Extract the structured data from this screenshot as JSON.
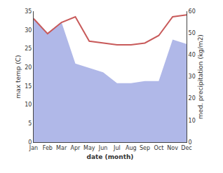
{
  "chart_data": {
    "type": "line",
    "categories": [
      "Jan",
      "Feb",
      "Mar",
      "Apr",
      "May",
      "Jun",
      "Jul",
      "Aug",
      "Sep",
      "Oct",
      "Nov",
      "Dec"
    ],
    "xlabel": "date (month)",
    "ylabel": "max temp (C)",
    "y2label": "med. precipitation (kg/m2)",
    "series": [
      {
        "type": "area",
        "axis": "y2",
        "color": "#b0b8e8",
        "values": [
          57.0,
          50.0,
          55.0,
          36.0,
          34.0,
          32.0,
          27.0,
          27.0,
          28.0,
          28.0,
          47.0,
          45.0
        ]
      },
      {
        "type": "line",
        "color": "#c85a5a",
        "values": [
          33.0,
          29.0,
          32.0,
          33.5,
          27.0,
          26.5,
          26.0,
          26.0,
          26.5,
          28.5,
          33.5,
          34.0
        ]
      }
    ],
    "ylim": [
      0,
      35
    ],
    "yticks": [
      0,
      5,
      10,
      15,
      20,
      25,
      30,
      35
    ],
    "y2lim": [
      0,
      60
    ],
    "y2ticks": [
      0,
      10,
      20,
      30,
      40,
      50,
      60
    ],
    "grid": false
  }
}
